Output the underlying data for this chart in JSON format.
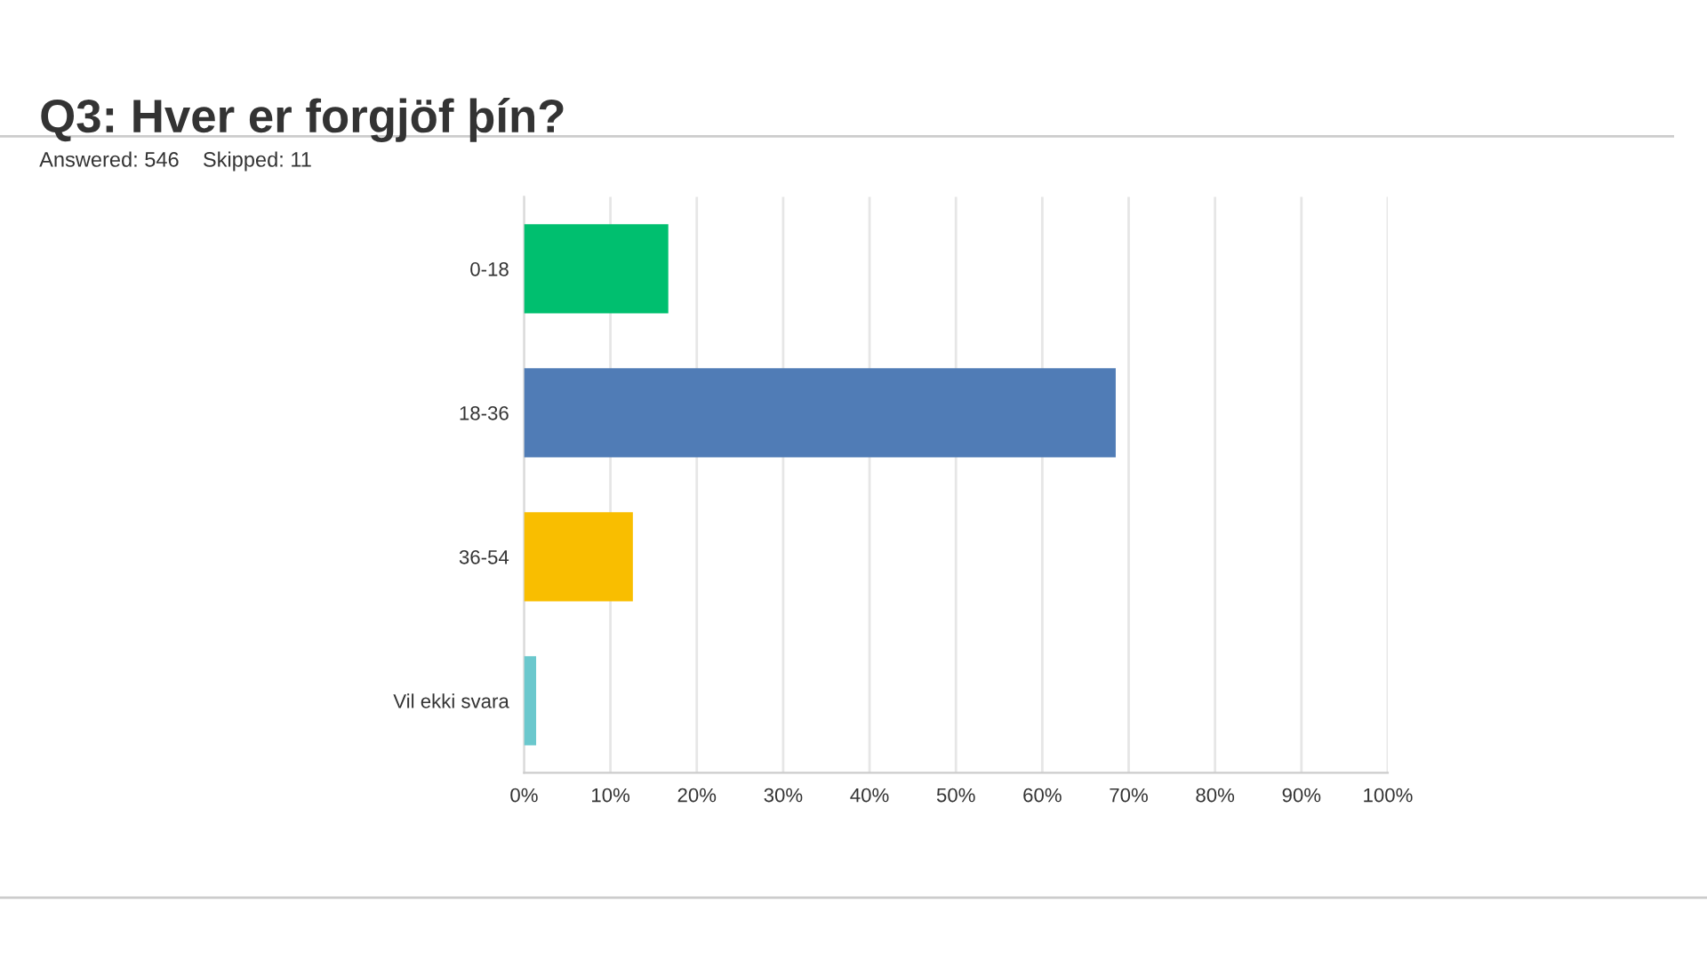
{
  "chart_data": {
    "type": "bar",
    "orientation": "horizontal",
    "title": "Q3: Hver er forgjöf þín?",
    "subtitle": "Answered: 546    Skipped: 11",
    "categories": [
      "0-18",
      "18-36",
      "36-54",
      "Vil ekki svara"
    ],
    "values": [
      16.7,
      68.5,
      12.6,
      1.4
    ],
    "colors": [
      "#00bf6f",
      "#507cb6",
      "#f9be00",
      "#6bc8cd"
    ],
    "xlim": [
      0,
      100
    ],
    "xticks": [
      {
        "value": 0,
        "label": "0%"
      },
      {
        "value": 10,
        "label": "10%"
      },
      {
        "value": 20,
        "label": "20%"
      },
      {
        "value": 30,
        "label": "30%"
      },
      {
        "value": 40,
        "label": "40%"
      },
      {
        "value": 50,
        "label": "50%"
      },
      {
        "value": 60,
        "label": "60%"
      },
      {
        "value": 70,
        "label": "70%"
      },
      {
        "value": 80,
        "label": "80%"
      },
      {
        "value": 90,
        "label": "90%"
      },
      {
        "value": 100,
        "label": "100%"
      }
    ],
    "grid": "x",
    "legend": false
  }
}
